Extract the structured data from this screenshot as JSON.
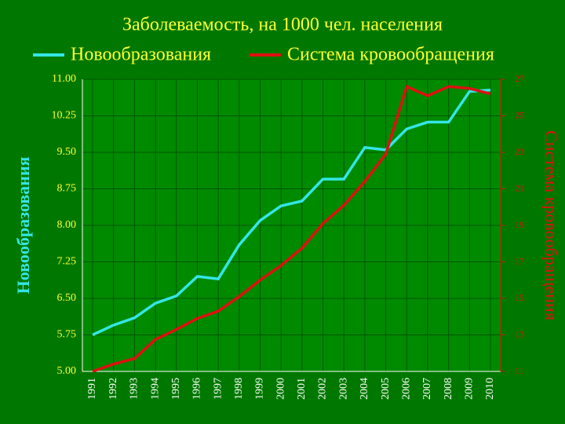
{
  "chart_data": {
    "type": "line",
    "title": "Заболеваемость, на 1000 чел. населения",
    "x": [
      1991,
      1992,
      1993,
      1994,
      1995,
      1996,
      1997,
      1998,
      1999,
      2000,
      2001,
      2002,
      2003,
      2004,
      2005,
      2006,
      2007,
      2008,
      2009,
      2010
    ],
    "xlim": [
      1991,
      2010
    ],
    "series": [
      {
        "name": "Новообразования",
        "color": "#33e6e6",
        "axis": "y",
        "values": [
          5.75,
          5.95,
          6.1,
          6.4,
          6.55,
          6.95,
          6.9,
          7.6,
          8.1,
          8.4,
          8.5,
          8.95,
          8.95,
          9.6,
          9.55,
          9.98,
          10.12,
          10.12,
          10.75,
          10.78
        ]
      },
      {
        "name": "Система кровообращения",
        "color": "#dd1111",
        "axis": "y2",
        "values": [
          11.0,
          11.4,
          11.7,
          12.75,
          13.3,
          13.9,
          14.3,
          15.1,
          16.0,
          16.8,
          17.75,
          19.1,
          20.1,
          21.4,
          22.9,
          26.6,
          26.1,
          26.6,
          26.5,
          26.2
        ]
      }
    ],
    "y_label": "Новообразования",
    "y2_label": "Система кровообращения",
    "ylim": [
      5,
      11
    ],
    "yticks": [
      {
        "value": 5,
        "label": "5.00"
      },
      5.75,
      {
        "value": 6.5,
        "label": "6.50"
      },
      7.25,
      {
        "value": 8,
        "label": "8.00"
      },
      8.75,
      {
        "value": 9.5,
        "label": "9.50"
      },
      10.25,
      {
        "value": 11,
        "label": "11.00"
      }
    ],
    "y2lim": [
      11,
      27
    ],
    "y2ticks": [
      11,
      13,
      15,
      17,
      19,
      21,
      23,
      25,
      27
    ],
    "grid": true
  }
}
